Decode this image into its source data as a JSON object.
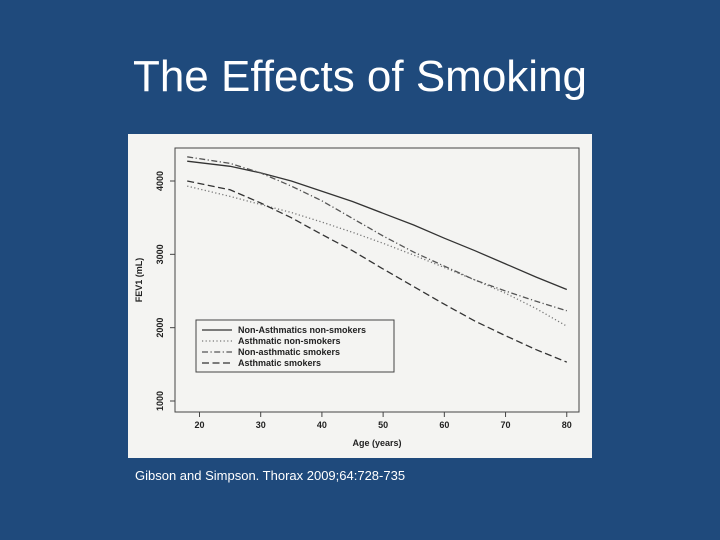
{
  "slide": {
    "title": "The Effects of Smoking",
    "citation": "Gibson and Simpson. Thorax 2009;64:728-735"
  },
  "colors": {
    "background": "#1f4a7c",
    "plot_background": "#f4f4f2"
  },
  "chart_data": {
    "type": "line",
    "title": "",
    "xlabel": "Age (years)",
    "ylabel": "FEV1 (mL)",
    "xlim": [
      16,
      82
    ],
    "ylim": [
      850,
      4450
    ],
    "x_ticks": [
      20,
      30,
      40,
      50,
      60,
      70,
      80
    ],
    "y_ticks": [
      1000,
      2000,
      3000,
      4000
    ],
    "grid": false,
    "legend_position": "bottom-left",
    "series": [
      {
        "name": "Non-Asthmatics non-smokers",
        "dash": "solid",
        "x": [
          18,
          25,
          30,
          35,
          40,
          45,
          50,
          55,
          60,
          65,
          70,
          75,
          80
        ],
        "y": [
          4270,
          4200,
          4110,
          4000,
          3860,
          3720,
          3560,
          3400,
          3220,
          3050,
          2870,
          2690,
          2520
        ]
      },
      {
        "name": "Asthmatic non-smokers",
        "dash": "dotted",
        "x": [
          18,
          25,
          30,
          35,
          40,
          45,
          50,
          55,
          60,
          65,
          70,
          75,
          80
        ],
        "y": [
          3930,
          3790,
          3680,
          3570,
          3440,
          3300,
          3150,
          2990,
          2820,
          2650,
          2470,
          2260,
          2020
        ]
      },
      {
        "name": "Non-asthmatic smokers",
        "dash": "dotdash",
        "x": [
          18,
          25,
          30,
          35,
          40,
          45,
          50,
          55,
          60,
          65,
          70,
          75,
          80
        ],
        "y": [
          4330,
          4240,
          4110,
          3930,
          3730,
          3490,
          3250,
          3030,
          2840,
          2650,
          2500,
          2360,
          2230
        ]
      },
      {
        "name": "Asthmatic smokers",
        "dash": "dashed",
        "x": [
          18,
          25,
          30,
          35,
          40,
          45,
          50,
          55,
          60,
          65,
          70,
          75,
          80
        ],
        "y": [
          4000,
          3880,
          3700,
          3500,
          3270,
          3050,
          2800,
          2560,
          2320,
          2090,
          1890,
          1700,
          1530
        ]
      }
    ]
  }
}
